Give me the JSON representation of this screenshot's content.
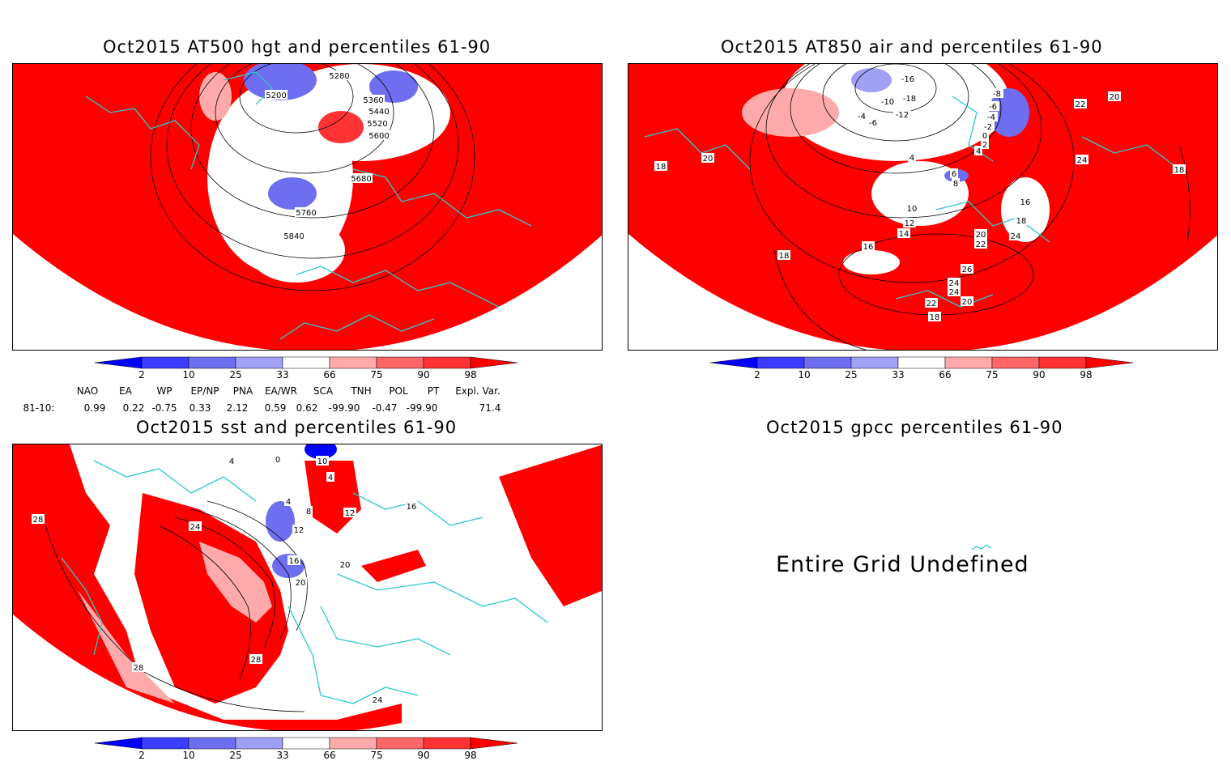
{
  "panels": {
    "hgt": {
      "title": "Oct2015 AT500 hgt and percentiles 61-90",
      "contour_labels": [
        "5200",
        "5280",
        "5360",
        "5440",
        "5520",
        "5600",
        "5680",
        "5760",
        "5840"
      ]
    },
    "air": {
      "title": "Oct2015 AT850 air and percentiles 61-90",
      "contour_labels": [
        "-16",
        "-18",
        "-10",
        "-12",
        "-6",
        "-4",
        "-8",
        "-6",
        "-4",
        "-2",
        "0",
        "2",
        "4",
        "4",
        "6",
        "8",
        "10",
        "12",
        "14",
        "16",
        "18",
        "20",
        "22",
        "24",
        "24",
        "26",
        "24",
        "22",
        "20",
        "18",
        "18",
        "16",
        "20",
        "22",
        "24",
        "20",
        "18",
        "18"
      ]
    },
    "sst": {
      "title": "Oct2015 sst and percentiles 61-90",
      "contour_labels": [
        "0",
        "4",
        "4",
        "4",
        "8",
        "12",
        "16",
        "20",
        "24",
        "28",
        "28",
        "28",
        "24",
        "20",
        "10",
        "16",
        "12"
      ]
    },
    "gpcc": {
      "title": "Oct2015 gpcc percentiles 61-90",
      "message": "Entire Grid Undefined"
    }
  },
  "colorbar": {
    "labels": [
      "2",
      "10",
      "25",
      "33",
      "66",
      "75",
      "90",
      "98"
    ],
    "colors": [
      "#0000ff",
      "#3c3cff",
      "#6e6ef0",
      "#a0a0f5",
      "#ffffff",
      "#ffaaaa",
      "#ff6666",
      "#ff3333",
      "#ff0000"
    ]
  },
  "teleconnections": {
    "headers": [
      "NAO",
      "EA",
      "WP",
      "EP/NP",
      "PNA",
      "EA/WR",
      "SCA",
      "TNH",
      "POL",
      "PT",
      "Expl. Var."
    ],
    "row_label": "81-10:",
    "values": [
      "0.99",
      "0.22",
      "-0.75",
      "0.33",
      "2.12",
      "0.59",
      "0.62",
      "-99.90",
      "-0.47",
      "-99.90",
      "71.4"
    ]
  }
}
